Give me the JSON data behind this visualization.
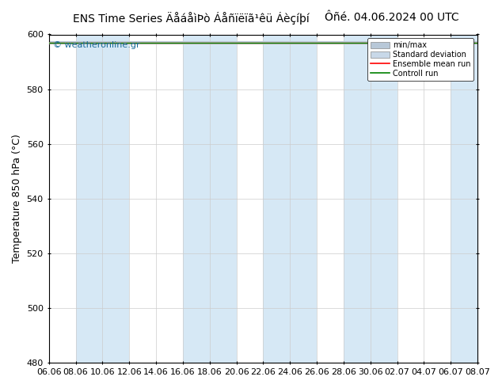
{
  "title": "ENS Time Series ÄåáåìÞò Áåñïëïã¹êü Áèçíþí",
  "title_right": "Ôñé. 04.06.2024 00 UTC",
  "ylabel": "Temperature 850 hPa (°C)",
  "watermark": "© weatheronline.gr",
  "ylim": [
    480,
    600
  ],
  "yticks": [
    480,
    500,
    520,
    540,
    560,
    580,
    600
  ],
  "x_labels": [
    "06.06",
    "08.06",
    "10.06",
    "12.06",
    "14.06",
    "16.06",
    "18.06",
    "20.06",
    "22.06",
    "24.06",
    "26.06",
    "28.06",
    "30.06",
    "02.07",
    "04.07",
    "06.07",
    "08.07"
  ],
  "n_points": 17,
  "stripe_color": "#d6e8f5",
  "bg_color": "#ffffff",
  "line_value": 597,
  "ensemble_color": "#ff0000",
  "control_color": "#008000",
  "minmax_color": "#b8c8d8",
  "stddev_color": "#c8d8e8",
  "legend_labels": [
    "min/max",
    "Standard deviation",
    "Ensemble mean run",
    "Controll run"
  ],
  "title_fontsize": 10,
  "tick_fontsize": 8,
  "ylabel_fontsize": 9
}
